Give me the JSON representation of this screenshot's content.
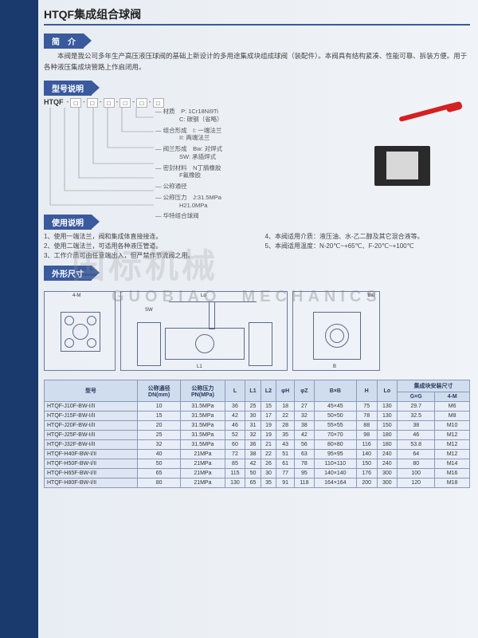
{
  "title": "HTQF集成组合球阀",
  "sections": {
    "intro": "简　介",
    "model": "型号说明",
    "usage": "使用说明",
    "dims": "外形尺寸"
  },
  "intro_text": "本阀是我公司多年生产高压液压球阀的基础上新设计的多用途集成块组成球阀（装配件）。本阀具有结构紧凑、性能可靠、拆装方便。用于各种液压集成块管路上作启闭用。",
  "model_prefix": "HTQF",
  "model_params": [
    {
      "k": "材质",
      "v": "P: 1Cr18Ni9Ti\nC: 碳钢（省略）"
    },
    {
      "k": "组合形成",
      "v": "I: 一端法兰\nII: 两端法兰"
    },
    {
      "k": "阀兰形成",
      "v": "Bw: 对焊式\nSW: 承插焊式"
    },
    {
      "k": "密封材料",
      "v": "N丁腈橡胶\nF氟橡胶"
    },
    {
      "k": "公称通径",
      "v": ""
    },
    {
      "k": "公称压力",
      "v": "J:31.5MPa\nH21.0MPa"
    },
    {
      "k": "华特组合球阀",
      "v": ""
    }
  ],
  "usage_left": [
    "1、使用一端法兰，阀和集成体直接接连。",
    "2、使用二端法兰，可适用各种液压管道。",
    "3、工作介质可由任意端出入，但严禁作节流阀之用。"
  ],
  "usage_right": [
    "4、本阀适用介质：液压油、水-乙二醇及其它混合液等。",
    "5、本阀适用温度：N-20℃~+65℃、F-20℃~+100℃"
  ],
  "watermark_cn": "国标机械",
  "watermark_en": "GUOBIAO　MECHANICS",
  "table": {
    "headers": [
      "型号",
      "公称通径\nDN(mm)",
      "公称压力\nPN(MPa)",
      "L",
      "L1",
      "L2",
      "φH",
      "φZ",
      "B×B",
      "H",
      "Lo",
      "G×G",
      "4-M"
    ],
    "header_group": "集成块安装尺寸",
    "rows": [
      [
        "HTQF-J10F-BW-I/II",
        "10",
        "31.5MPa",
        "36",
        "25",
        "15",
        "18",
        "27",
        "45×45",
        "75",
        "130",
        "29.7",
        "M6"
      ],
      [
        "HTQF-J15F-BW-I/II",
        "15",
        "31.5MPa",
        "42",
        "30",
        "17",
        "22",
        "32",
        "50×50",
        "78",
        "130",
        "32.5",
        "M8"
      ],
      [
        "HTQF-J20F-BW-I/II",
        "20",
        "31.5MPa",
        "46",
        "31",
        "19",
        "28",
        "38",
        "55×55",
        "88",
        "150",
        "38",
        "M10"
      ],
      [
        "HTQF-J25F-BW-I/II",
        "25",
        "31.5MPa",
        "52",
        "32",
        "19",
        "35",
        "42",
        "70×70",
        "98",
        "180",
        "46",
        "M12"
      ],
      [
        "HTQF-J32F-BW-I/II",
        "32",
        "31.5MPa",
        "60",
        "36",
        "21",
        "43",
        "56",
        "80×80",
        "116",
        "180",
        "53.8",
        "M12"
      ],
      [
        "HTQF-H40F-BW-I/II",
        "40",
        "21MPa",
        "72",
        "38",
        "22",
        "51",
        "63",
        "95×95",
        "140",
        "240",
        "64",
        "M12"
      ],
      [
        "HTQF-H50F-BW-I/II",
        "50",
        "21MPa",
        "85",
        "42",
        "26",
        "61",
        "78",
        "110×110",
        "150",
        "240",
        "80",
        "M14"
      ],
      [
        "HTQF-H65F-BW-I/II",
        "65",
        "21MPa",
        "115",
        "50",
        "30",
        "77",
        "95",
        "140×140",
        "176",
        "300",
        "100",
        "M16"
      ],
      [
        "HTQF-H80F-BW-I/II",
        "80",
        "21MPa",
        "130",
        "65",
        "35",
        "91",
        "118",
        "164×164",
        "200",
        "300",
        "120",
        "M18"
      ]
    ]
  }
}
